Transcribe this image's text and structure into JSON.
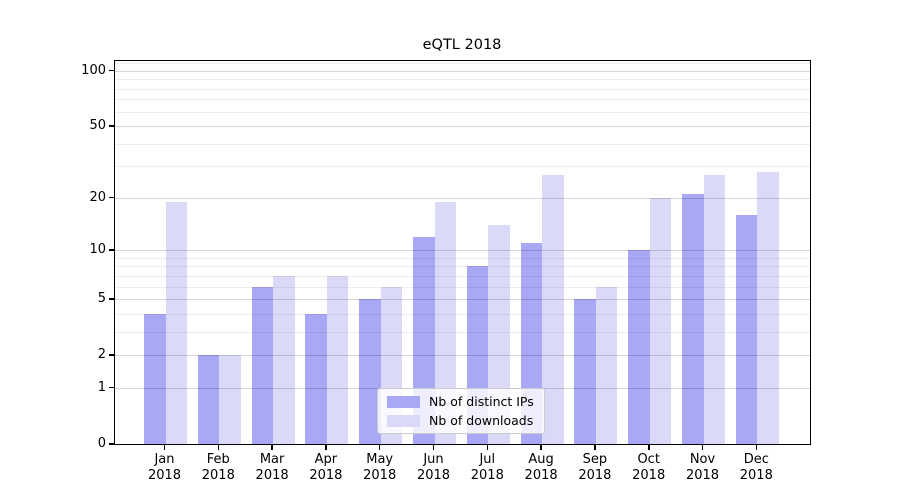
{
  "chart_data": {
    "type": "bar",
    "title": "eQTL 2018",
    "categories": [
      "Jan 2018",
      "Feb 2018",
      "Mar 2018",
      "Apr 2018",
      "May 2018",
      "Jun 2018",
      "Jul 2018",
      "Aug 2018",
      "Sep 2018",
      "Oct 2018",
      "Nov 2018",
      "Dec 2018"
    ],
    "series": [
      {
        "name": "Nb of distinct IPs",
        "color": "#a8a8f5",
        "values": [
          4,
          2,
          6,
          4,
          5,
          12,
          8,
          11,
          5,
          10,
          21,
          16
        ]
      },
      {
        "name": "Nb of downloads",
        "color": "#dadaf8",
        "values": [
          19,
          2,
          7,
          7,
          6,
          19,
          14,
          27,
          6,
          20,
          27,
          28
        ]
      }
    ],
    "xlabel": "",
    "ylabel": "",
    "yscale": "log1p",
    "ylim": [
      0,
      113
    ],
    "y_major_ticks": [
      0,
      1,
      2,
      5,
      10,
      20,
      50,
      100
    ],
    "y_minor_ticks": [
      3,
      4,
      6,
      7,
      8,
      9,
      30,
      40,
      60,
      70,
      80,
      90,
      110
    ],
    "grid": "horizontal, major and minor",
    "legend_position": "lower center inside plot"
  }
}
